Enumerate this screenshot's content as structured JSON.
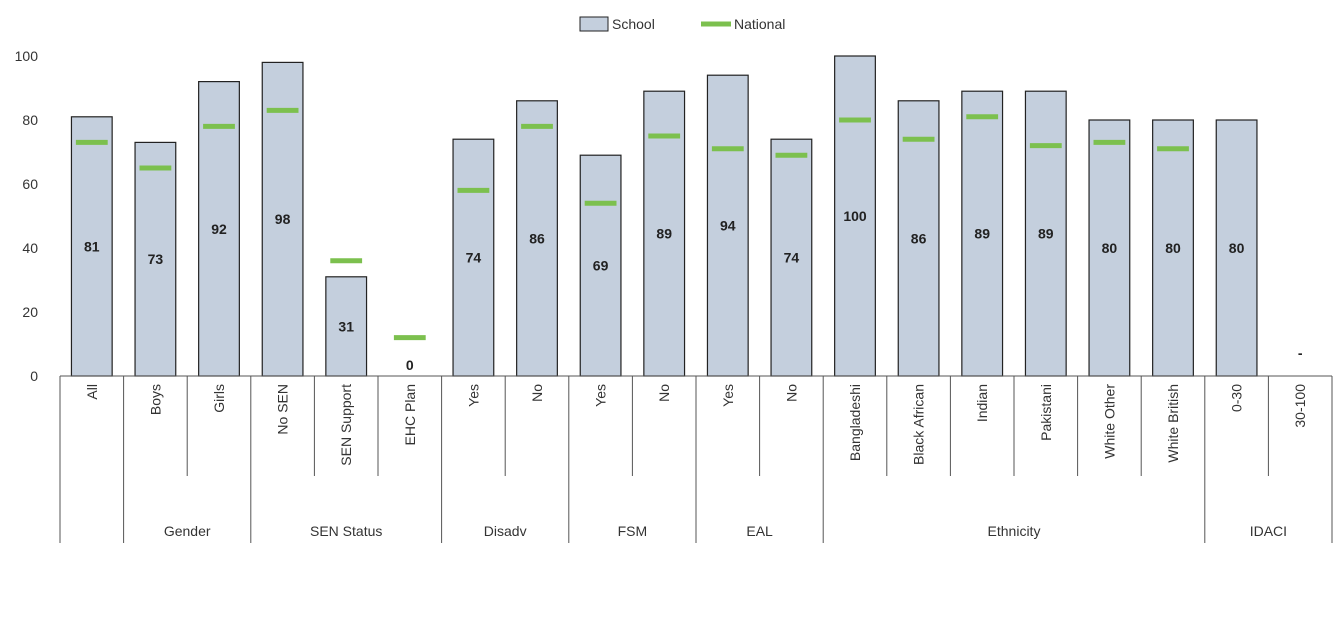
{
  "chart_data": {
    "type": "bar",
    "title": "",
    "xlabel": "",
    "ylabel": "",
    "ylim": [
      0,
      100
    ],
    "yticks": [
      0,
      20,
      40,
      60,
      80,
      100
    ],
    "grid": false,
    "legend": {
      "position": "top-center",
      "entries": [
        {
          "name": "School",
          "style": "bar"
        },
        {
          "name": "National",
          "style": "line"
        }
      ]
    },
    "categories": [
      "All",
      "Boys",
      "Girls",
      "No SEN",
      "SEN Support",
      "EHC Plan",
      "Yes",
      "No",
      "Yes",
      "No",
      "Yes",
      "No",
      "Bangladeshi",
      "Black African",
      "Indian",
      "Pakistani",
      "White Other",
      "White British",
      "0-30",
      "30-100"
    ],
    "groups": [
      {
        "label": "",
        "start": 0,
        "count": 1
      },
      {
        "label": "Gender",
        "start": 1,
        "count": 2
      },
      {
        "label": "SEN Status",
        "start": 3,
        "count": 3
      },
      {
        "label": "Disadv",
        "start": 6,
        "count": 2
      },
      {
        "label": "FSM",
        "start": 8,
        "count": 2
      },
      {
        "label": "EAL",
        "start": 10,
        "count": 2
      },
      {
        "label": "Ethnicity",
        "start": 12,
        "count": 6
      },
      {
        "label": "IDACI",
        "start": 18,
        "count": 2
      }
    ],
    "series": [
      {
        "name": "School",
        "values": [
          81,
          73,
          92,
          98,
          31,
          0,
          74,
          86,
          69,
          89,
          94,
          74,
          100,
          86,
          89,
          89,
          80,
          80,
          80,
          null
        ]
      },
      {
        "name": "National",
        "values": [
          73,
          65,
          78,
          83,
          36,
          12,
          58,
          78,
          54,
          75,
          71,
          69,
          80,
          74,
          81,
          72,
          73,
          71,
          null,
          null
        ]
      }
    ],
    "data_labels": [
      "81",
      "73",
      "92",
      "98",
      "31",
      "0",
      "74",
      "86",
      "69",
      "89",
      "94",
      "74",
      "100",
      "86",
      "89",
      "89",
      "80",
      "80",
      "80",
      "-"
    ],
    "colors": {
      "school_fill": "#c4cfdd",
      "school_stroke": "#222222",
      "national": "#7cc04e",
      "axis": "#555555"
    }
  }
}
